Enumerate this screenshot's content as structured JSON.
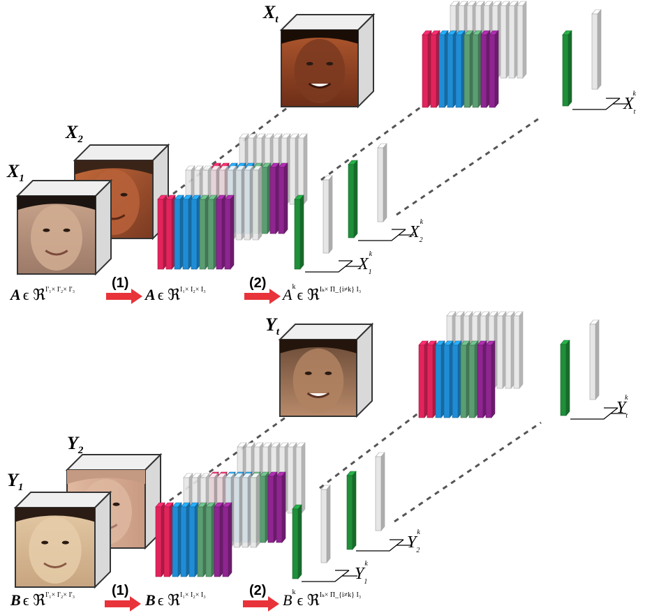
{
  "colors": {
    "red": "#e2245c",
    "blue": "#1f8dd6",
    "green": "#5a9e72",
    "purple": "#8e2590",
    "dark_green": "#1f8f3a",
    "ghost": "#e6e6e6",
    "arrow": "#e8333a"
  },
  "top": {
    "x1": "X",
    "x1_sub": "1",
    "x2": "X",
    "x2_sub": "2",
    "xt": "X",
    "xt_sub": "t",
    "set_a_letter": "A",
    "set_a_rest": "ϵ ℜ",
    "set_a_sup": "I'₁× I'₂× I'₃",
    "step1": "(1)",
    "set_a2_letter": "A",
    "set_a2_rest": "ϵ ℜ",
    "set_a2_sup": "I₁× I₂× I₃",
    "step2": "(2)",
    "set_a3_letter": "A",
    "set_a3_k": "k",
    "set_a3_rest": "ϵ ℜ",
    "set_a3_sup": "Iₖ× Π_{i≠k} I₃",
    "xk1": "X",
    "xk1_sub": "1",
    "xk1_sup": "k",
    "xk2": "X",
    "xk2_sub": "2",
    "xk2_sup": "k",
    "xkt": "X",
    "xkt_sub": "t",
    "xkt_sup": "k"
  },
  "bottom": {
    "y1": "Y",
    "y1_sub": "1",
    "y2": "Y",
    "y2_sub": "2",
    "yt": "Y",
    "yt_sub": "t",
    "set_b_letter": "B",
    "set_b_rest": "ϵ ℜ",
    "set_b_sup": "I'₁× I'₂× I'₃",
    "step1": "(1)",
    "set_b2_letter": "B",
    "set_b2_rest": "ϵ ℜ",
    "set_b2_sup": "I₁× I₂× I₃",
    "step2": "(2)",
    "set_b3_letter": "B",
    "set_b3_k": "k",
    "set_b3_rest": "ϵ ℜ",
    "set_b3_sup": "Iₖ× Π_{i≠k} I₃",
    "yk1": "Y",
    "yk1_sub": "1",
    "yk1_sup": "k",
    "yk2": "Y",
    "yk2_sub": "2",
    "yk2_sup": "k",
    "ykt": "Y",
    "ykt_sub": "t",
    "ykt_sup": "k"
  }
}
